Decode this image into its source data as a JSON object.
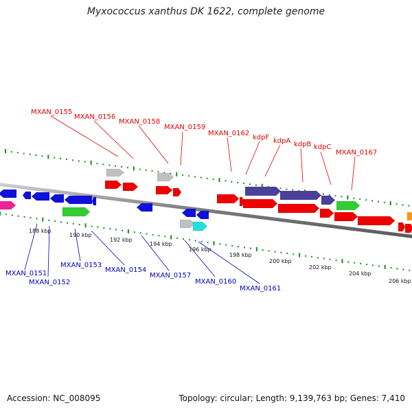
{
  "title": "Myxococcus xanthus DK 1622, complete genome",
  "accession_text": "Accession: NC_008095",
  "topology_text": "Topology: circular; Length: 9,139,763 bp; Genes: 7,410",
  "ruler_labels": [
    "188 kbp",
    "190 kbp",
    "192 kbp",
    "194 kbp",
    "196 kbp",
    "198 kbp",
    "200 kbp",
    "202 kbp",
    "204 kbp",
    "206 kbp"
  ],
  "colors": {
    "backbone": "#888888",
    "forward_label": "#dd0000",
    "reverse_label": "#0000bb",
    "tick": "#1a8a1a",
    "red": "#ee0000",
    "blue": "#1010dd",
    "grey": "#c0c0c0",
    "green": "#33cc33",
    "purple": "#4b3f9c",
    "magenta": "#ee2299",
    "cyan": "#22dddd",
    "orange": "#ff9900"
  },
  "forward_genes": [
    "MXAN_0155",
    "MXAN_0156",
    "MXAN_0158",
    "MXAN_0159",
    "MXAN_0162",
    "kdpF",
    "kdpA",
    "kdpB",
    "kdpC",
    "MXAN_0167"
  ],
  "reverse_genes": [
    "MXAN_0151",
    "MXAN_0152",
    "MXAN_0153",
    "MXAN_0154",
    "MXAN_0157",
    "MXAN_0160",
    "MXAN_0161"
  ]
}
